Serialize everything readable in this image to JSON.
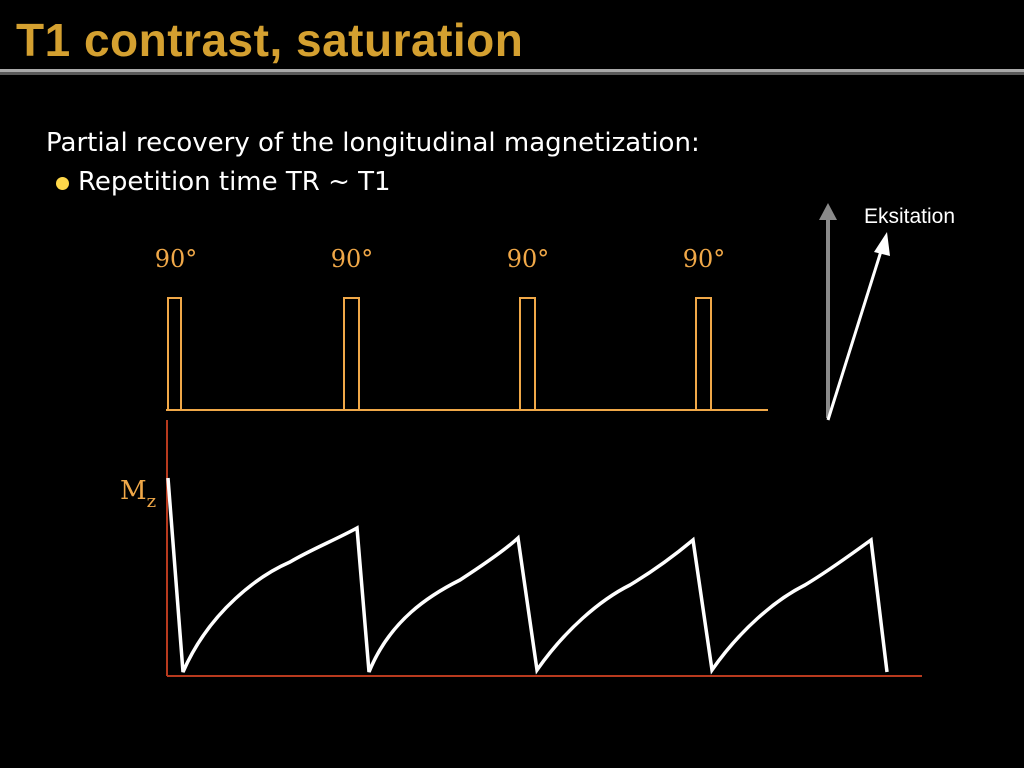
{
  "slide": {
    "title": "T1 contrast, saturation",
    "intro": "Partial recovery of the longitudinal magnetization:",
    "bullet": "Repetition time TR ~ T1"
  },
  "diagram": {
    "pulse_labels": [
      "90°",
      "90°",
      "90°",
      "90°"
    ],
    "mz_label": "M",
    "mz_subscript": "z",
    "excitation_label": "Eksitation"
  },
  "colors": {
    "title": "#d4a030",
    "pulse": "#f0a848",
    "axis": "#b83a1e",
    "curve": "#ffffff",
    "arrow_vertical": "#8a8a8a",
    "bullet": "#ffd84a"
  }
}
